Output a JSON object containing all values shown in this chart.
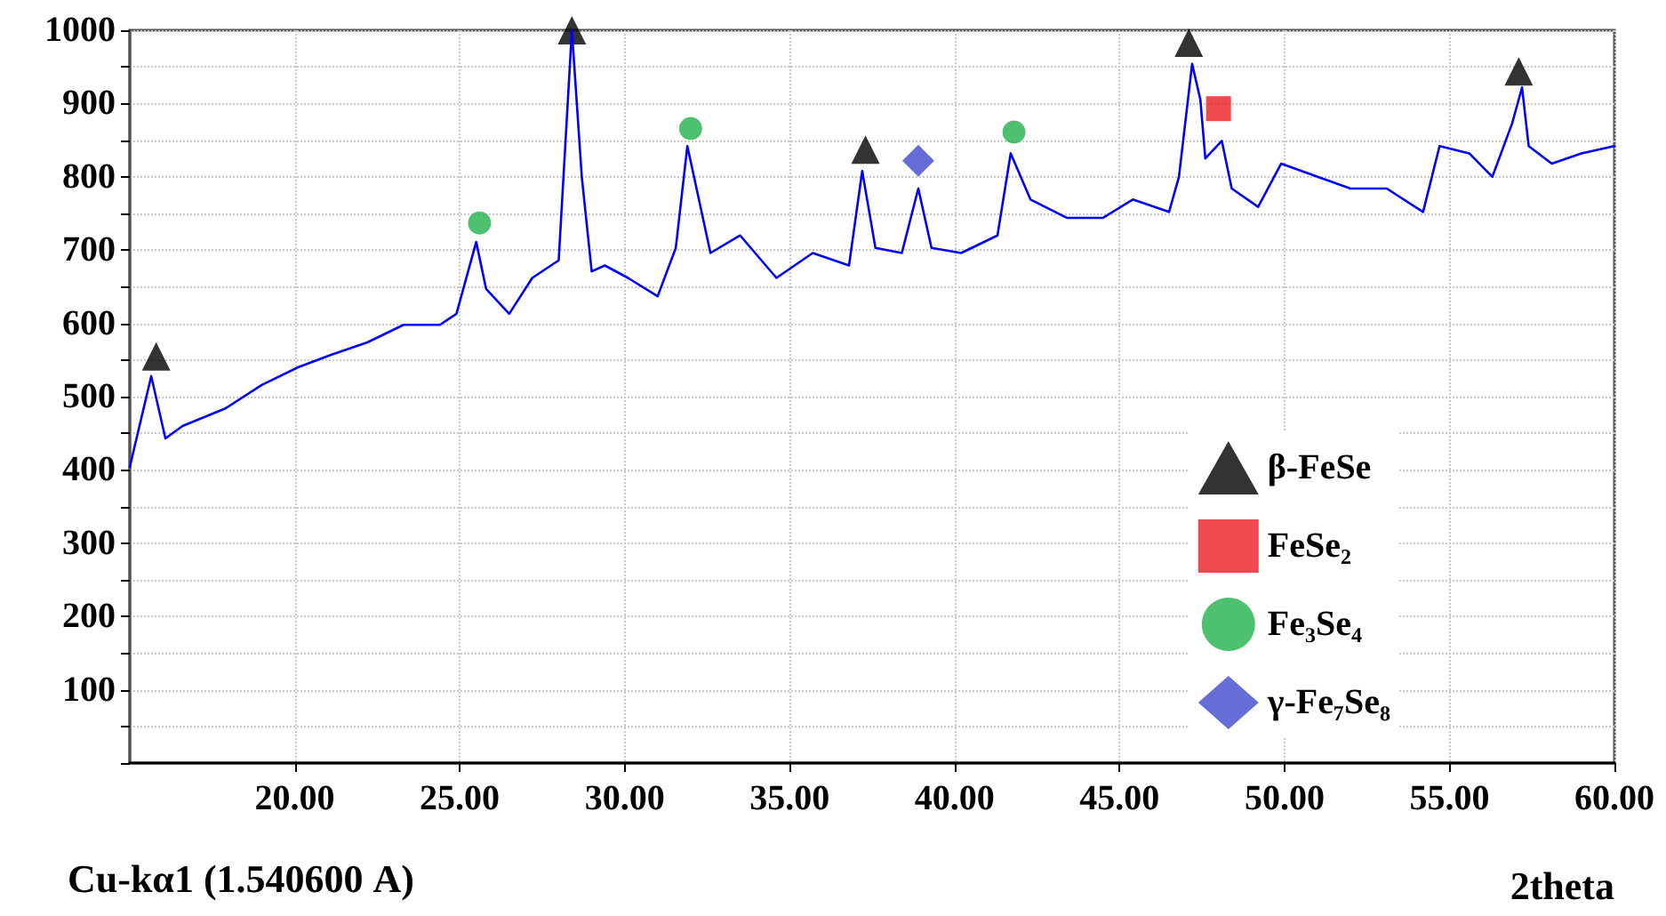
{
  "chart_data": {
    "type": "line",
    "xlabel": "2theta",
    "annotations": [
      "Cu-kα1 (1.540600 A)"
    ],
    "xlim": [
      15,
      60
    ],
    "xticks": [
      {
        "value": 20,
        "label": "20.00"
      },
      {
        "value": 25,
        "label": "25.00"
      },
      {
        "value": 30,
        "label": "30.00"
      },
      {
        "value": 35,
        "label": "35.00"
      },
      {
        "value": 40,
        "label": "40.00"
      },
      {
        "value": 45,
        "label": "45.00"
      },
      {
        "value": 50,
        "label": "50.00"
      },
      {
        "value": 55,
        "label": "55.00"
      },
      {
        "value": 60,
        "label": "60.00"
      }
    ],
    "ylim": [
      0,
      1000
    ],
    "yticks": [
      {
        "value": 0,
        "label": null
      },
      {
        "value": 50,
        "label": null
      },
      100,
      {
        "value": 150,
        "label": null
      },
      200,
      {
        "value": 250,
        "label": null
      },
      300,
      {
        "value": 350,
        "label": null
      },
      400,
      {
        "value": 450,
        "label": null
      },
      500,
      {
        "value": 550,
        "label": null
      },
      600,
      {
        "value": 650,
        "label": null
      },
      700,
      {
        "value": 750,
        "label": null
      },
      800,
      {
        "value": 850,
        "label": null
      },
      900,
      {
        "value": 950,
        "label": null
      },
      1000
    ],
    "grid": true,
    "legend": "bottom right",
    "line_style": "solid",
    "series": [
      {
        "color": "#0000ff",
        "marker": "none",
        "x": [
          15.0,
          15.65,
          16.08,
          16.6,
          17.9,
          19.0,
          20.1,
          21.1,
          22.2,
          23.3,
          24.4,
          24.9,
          25.5,
          25.8,
          26.5,
          27.2,
          28.0,
          28.4,
          28.7,
          29.0,
          29.4,
          30.1,
          31.0,
          31.55,
          31.9,
          32.25,
          32.6,
          33.5,
          34.6,
          35.7,
          36.8,
          37.2,
          37.6,
          38.4,
          38.9,
          39.3,
          40.2,
          41.3,
          41.7,
          42.3,
          43.4,
          44.5,
          45.4,
          46.5,
          46.8,
          47.2,
          47.45,
          47.6,
          48.1,
          48.4,
          49.2,
          49.9,
          51.0,
          52.0,
          53.1,
          54.2,
          54.7,
          55.6,
          56.3,
          56.9,
          57.2,
          57.4,
          58.1,
          59.0,
          60.0
        ],
        "values": [
          404,
          528,
          443,
          460,
          484,
          516,
          540,
          557,
          574,
          598,
          598,
          613,
          711,
          647,
          613,
          662,
          686,
          1000,
          800,
          671,
          679,
          662,
          637,
          703,
          842,
          769,
          696,
          720,
          662,
          696,
          679,
          808,
          703,
          696,
          784,
          703,
          696,
          720,
          832,
          769,
          744,
          744,
          769,
          752,
          800,
          954,
          905,
          825,
          849,
          784,
          759,
          818,
          800,
          784,
          784,
          752,
          842,
          832,
          800,
          873,
          922,
          842,
          818,
          832,
          842
        ]
      },
      {
        "type": "scatter",
        "name": "β-FeSe",
        "color": "#000000",
        "marker": "triangle",
        "x": [
          15.8,
          28.4,
          37.3,
          47.1,
          57.1
        ],
        "values": [
          555,
          1000,
          837,
          983,
          944
        ]
      },
      {
        "type": "scatter",
        "name": "FeSe₂",
        "color": "#ed1c24",
        "marker": "square",
        "x": [
          48.0
        ],
        "values": [
          893
        ]
      },
      {
        "type": "scatter",
        "name": "Fe₃Se₄",
        "color": "#22b14c",
        "marker": "circle",
        "x": [
          25.6,
          32.0,
          41.8
        ],
        "values": [
          737,
          866,
          861
        ]
      },
      {
        "type": "scatter",
        "name": "γ-Fe₇Se₈",
        "color": "#3f48cc",
        "marker": "diamond",
        "x": [
          38.9
        ],
        "values": [
          822
        ]
      }
    ]
  }
}
